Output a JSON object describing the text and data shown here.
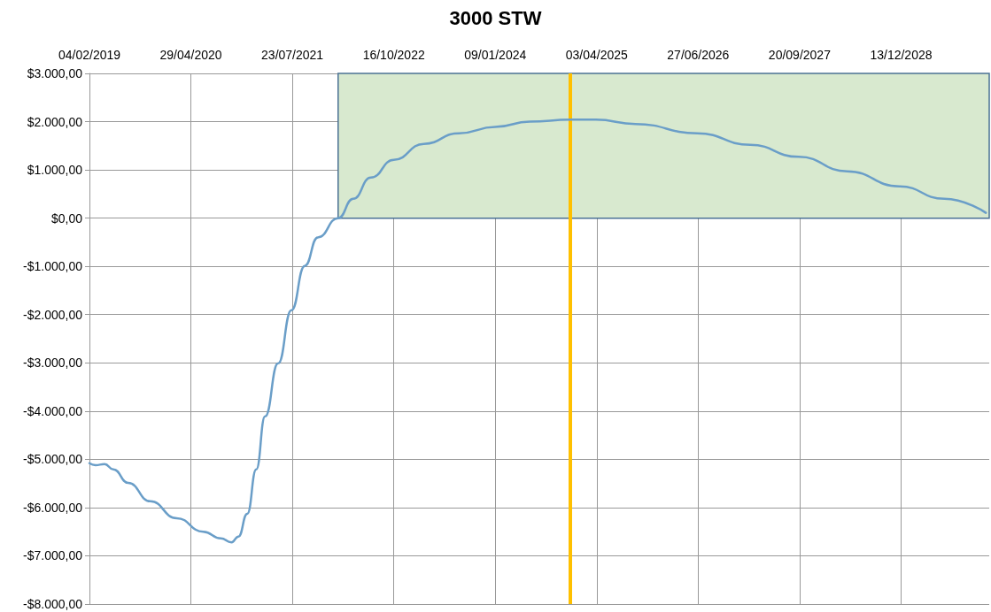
{
  "chart_data": {
    "type": "line",
    "title": "3000 STW",
    "x": [
      "2019-02-04",
      "2019-03-03",
      "2019-04-12",
      "2019-05-21",
      "2019-07-26",
      "2019-11-01",
      "2020-02-26",
      "2020-06-23",
      "2020-09-09",
      "2020-10-26",
      "2020-11-26",
      "2021-01-04",
      "2021-02-13",
      "2021-03-24",
      "2021-05-21",
      "2021-07-19",
      "2021-09-16",
      "2021-11-13",
      "2022-02-11",
      "2022-04-19",
      "2022-07-06",
      "2022-10-16",
      "2023-02-26",
      "2023-08-01",
      "2024-01-09",
      "2024-06-10",
      "2024-12-07",
      "2025-03-30",
      "2025-09-22",
      "2026-06-23",
      "2027-02-13",
      "2027-09-16",
      "2028-04-18",
      "2028-12-05",
      "2029-06-23",
      "2029-12-24"
    ],
    "series": [
      {
        "color": "#6a9ec8",
        "values": [
          -5080,
          -5120,
          -5100,
          -5210,
          -5490,
          -5870,
          -6220,
          -6500,
          -6640,
          -6720,
          -6600,
          -6130,
          -5210,
          -4110,
          -3010,
          -1910,
          -990,
          -400,
          0,
          400,
          840,
          1210,
          1540,
          1760,
          1890,
          2000,
          2040,
          2040,
          1950,
          1760,
          1520,
          1270,
          970,
          660,
          400,
          110
        ]
      }
    ],
    "xlim": [
      "2019-02-04",
      "2030-01-08"
    ],
    "xticks": [
      {
        "value": "2019-02-04",
        "label": "04/02/2019"
      },
      {
        "value": "2020-04-29",
        "label": "29/04/2020"
      },
      {
        "value": "2021-07-23",
        "label": "23/07/2021"
      },
      {
        "value": "2022-10-16",
        "label": "16/10/2022"
      },
      {
        "value": "2024-01-09",
        "label": "09/01/2024"
      },
      {
        "value": "2025-04-03",
        "label": "03/04/2025"
      },
      {
        "value": "2026-06-27",
        "label": "27/06/2026"
      },
      {
        "value": "2027-09-20",
        "label": "20/09/2027"
      },
      {
        "value": "2028-12-13",
        "label": "13/12/2028"
      }
    ],
    "ylim": [
      -8000,
      3000
    ],
    "yticks": [
      {
        "value": 3000,
        "label": "$3.000,00"
      },
      {
        "value": 2000,
        "label": "$2.000,00"
      },
      {
        "value": 1000,
        "label": "$1.000,00"
      },
      {
        "value": 0,
        "label": "$0,00"
      },
      {
        "value": -1000,
        "label": "-$1.000,00"
      },
      {
        "value": -2000,
        "label": "-$2.000,00"
      },
      {
        "value": -3000,
        "label": "-$3.000,00"
      },
      {
        "value": -4000,
        "label": "-$4.000,00"
      },
      {
        "value": -5000,
        "label": "-$5.000,00"
      },
      {
        "value": -6000,
        "label": "-$6.000,00"
      },
      {
        "value": -7000,
        "label": "-$7.000,00"
      },
      {
        "value": -8000,
        "label": "-$8.000,00"
      }
    ],
    "bands": [
      {
        "axis": "x",
        "from": "2022-02-11",
        "to": "2030-01-08",
        "color": "#d8e9cf"
      }
    ],
    "ref_lines": [
      {
        "axis": "x",
        "value": "2024-12-07",
        "color": "#ffc000"
      }
    ],
    "grid": true,
    "marker": "none",
    "line_style": "solid"
  }
}
